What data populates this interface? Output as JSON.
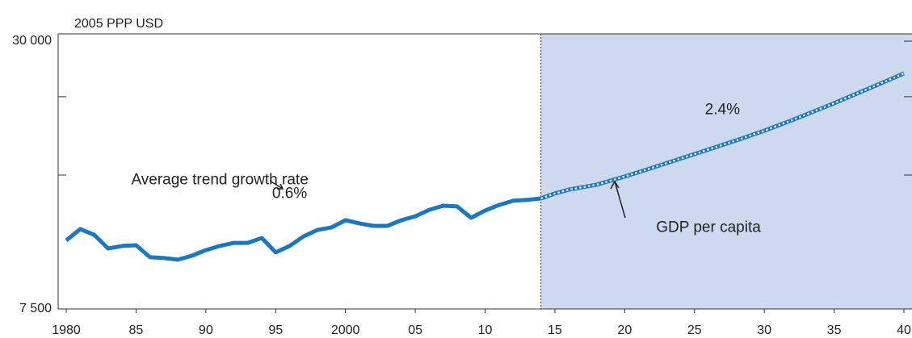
{
  "chart_data": {
    "type": "line",
    "y_unit": "2005 PPP USD",
    "log_y": true,
    "xlim": [
      1980,
      2040
    ],
    "ylim": [
      7500,
      30000
    ],
    "xticks": [
      1980,
      {
        "value": 1985,
        "label": "85"
      },
      {
        "value": 1990,
        "label": "90"
      },
      {
        "value": 1995,
        "label": "95"
      },
      2000,
      {
        "value": 2005,
        "label": "05"
      },
      {
        "value": 2010,
        "label": "10"
      },
      {
        "value": 2015,
        "label": "15"
      },
      {
        "value": 2020,
        "label": "20"
      },
      {
        "value": 2025,
        "label": "25"
      },
      {
        "value": 2030,
        "label": "30"
      },
      {
        "value": 2035,
        "label": "35"
      },
      {
        "value": 2040,
        "label": "40"
      }
    ],
    "yticks": [
      {
        "value": 7500,
        "label": "7 500"
      },
      {
        "value": 30000,
        "label": "30 000"
      }
    ],
    "yminorticks": [
      15000,
      22500
    ],
    "shaded_region": [
      2014,
      2040
    ],
    "shade_color": "#cdd9ef",
    "series": [
      {
        "color": "#1a78c2",
        "style": "solid",
        "x": [
          1980,
          1981,
          1982,
          1983,
          1984,
          1985,
          1986,
          1987,
          1988,
          1989,
          1990,
          1991,
          1992,
          1993,
          1994,
          1995,
          1996,
          1997,
          1998,
          1999,
          2000,
          2001,
          2002,
          2003,
          2004,
          2005,
          2006,
          2007,
          2008,
          2009,
          2010,
          2011,
          2012,
          2013,
          2014
        ],
        "values": [
          10700,
          11340,
          11010,
          10260,
          10390,
          10430,
          9800,
          9760,
          9680,
          9880,
          10170,
          10390,
          10560,
          10560,
          10830,
          10050,
          10390,
          10920,
          11290,
          11440,
          11870,
          11680,
          11530,
          11530,
          11870,
          12120,
          12530,
          12800,
          12750,
          12020,
          12480,
          12850,
          13130,
          13190,
          13290
        ]
      },
      {
        "color": "#1a78c2",
        "style": "dotted",
        "x": [
          2014,
          2015,
          2016,
          2018,
          2020,
          2022,
          2025,
          2028,
          2030,
          2032,
          2035,
          2038,
          2040
        ],
        "values": [
          13290,
          13630,
          13910,
          14270,
          14880,
          15580,
          16720,
          17950,
          18870,
          19930,
          21750,
          23850,
          25390
        ]
      }
    ],
    "annotations": [
      {
        "text": "Average trend growth rate",
        "x": 1991,
        "y": 14600
      },
      {
        "text": "0.6%",
        "x": 1996,
        "y": 13600
      },
      {
        "text": "2.4%",
        "x": 2027,
        "y": 21000
      },
      {
        "text": "GDP per capita",
        "x": 2026,
        "y": 11400
      }
    ]
  }
}
